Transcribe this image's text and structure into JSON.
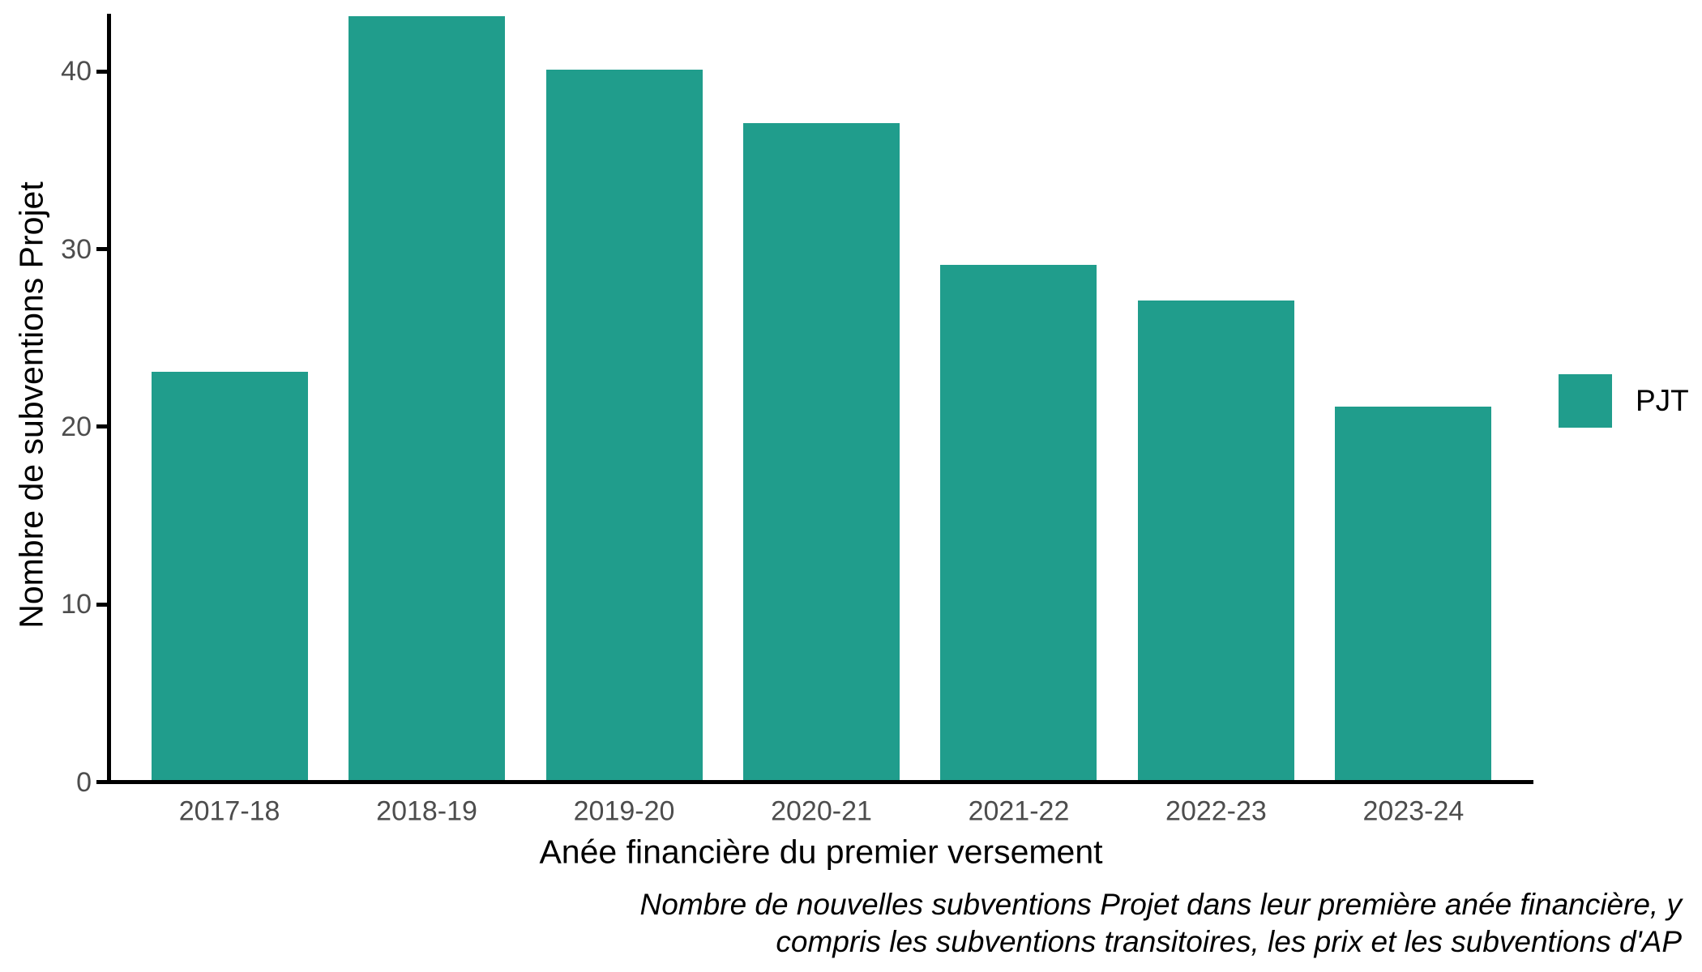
{
  "chart_data": {
    "type": "bar",
    "categories": [
      "2017-18",
      "2018-19",
      "2019-20",
      "2020-21",
      "2021-22",
      "2022-23",
      "2023-24"
    ],
    "series": [
      {
        "name": "PJT",
        "values": [
          23,
          43,
          40,
          37,
          29,
          27,
          21
        ]
      }
    ],
    "title": "",
    "xlabel": "Anée financière du premier versement",
    "ylabel": "Nombre de subventions Projet",
    "ylim": [
      0,
      43
    ],
    "yticks": [
      0,
      10,
      20,
      30,
      40
    ],
    "grid": false,
    "legend_position": "right",
    "bar_color": "#209d8c",
    "axis_line_color": "#000000",
    "tick_label_color": "#4d4d4d",
    "caption_lines": [
      "Nombre de nouvelles subventions Projet dans leur première anée financière, y",
      "compris les subventions transitoires, les prix et les subventions d'AP"
    ]
  },
  "legend": {
    "items": [
      {
        "label": "PJT",
        "color": "#209d8c"
      }
    ]
  }
}
